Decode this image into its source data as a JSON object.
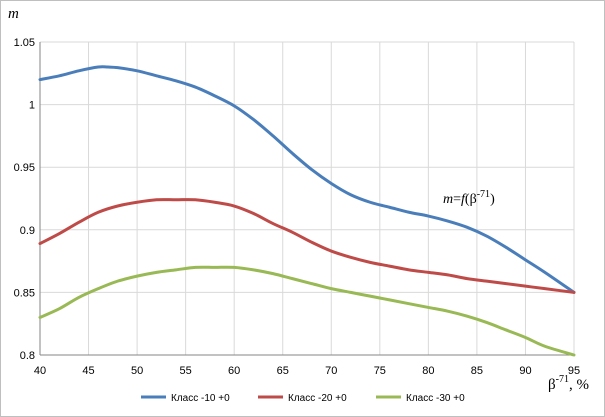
{
  "chart_data": {
    "type": "line",
    "ylabel": "m",
    "xlabel_main": "β",
    "xlabel_sup": "-71",
    "xlabel_unit": ", %",
    "annotation": {
      "prefix": "m",
      "eq": "=",
      "func": "f",
      "arg_open": "(β",
      "arg_sup": "-71",
      "arg_close": ")"
    },
    "xlim": [
      40,
      95
    ],
    "ylim": [
      0.8,
      1.05
    ],
    "x_ticks": [
      40,
      45,
      50,
      55,
      60,
      65,
      70,
      75,
      80,
      85,
      90,
      95
    ],
    "y_ticks": [
      "0.8",
      "0.85",
      "0.9",
      "0.95",
      "1",
      "1.05"
    ],
    "grid": true,
    "legend_position": "bottom",
    "series": [
      {
        "name": "Класс -10 +0",
        "color": "#4a7ebb",
        "x": [
          40,
          42,
          44,
          46,
          47,
          48,
          50,
          52,
          54,
          56,
          58,
          60,
          62,
          64,
          66,
          68,
          70,
          72,
          74,
          76,
          78,
          80,
          82,
          84,
          86,
          88,
          90,
          92,
          95
        ],
        "y": [
          1.02,
          1.023,
          1.027,
          1.03,
          1.03,
          1.0295,
          1.027,
          1.023,
          1.019,
          1.014,
          1.007,
          0.999,
          0.988,
          0.975,
          0.961,
          0.948,
          0.937,
          0.928,
          0.922,
          0.918,
          0.914,
          0.911,
          0.907,
          0.902,
          0.895,
          0.886,
          0.876,
          0.866,
          0.85
        ]
      },
      {
        "name": "Класс -20 +0",
        "color": "#be4b48",
        "x": [
          40,
          42,
          44,
          46,
          48,
          50,
          52,
          54,
          56,
          58,
          60,
          62,
          64,
          66,
          68,
          70,
          72,
          74,
          76,
          78,
          80,
          82,
          84,
          86,
          88,
          90,
          92,
          95
        ],
        "y": [
          0.889,
          0.897,
          0.906,
          0.914,
          0.919,
          0.922,
          0.924,
          0.924,
          0.924,
          0.922,
          0.919,
          0.913,
          0.905,
          0.898,
          0.89,
          0.883,
          0.878,
          0.874,
          0.871,
          0.868,
          0.866,
          0.864,
          0.861,
          0.859,
          0.857,
          0.855,
          0.853,
          0.85
        ]
      },
      {
        "name": "Класс -30 +0",
        "color": "#98b954",
        "x": [
          40,
          42,
          44,
          46,
          48,
          50,
          52,
          54,
          56,
          58,
          60,
          62,
          64,
          66,
          68,
          70,
          72,
          74,
          76,
          78,
          80,
          82,
          84,
          86,
          88,
          90,
          92,
          95
        ],
        "y": [
          0.83,
          0.837,
          0.846,
          0.853,
          0.859,
          0.863,
          0.866,
          0.868,
          0.87,
          0.87,
          0.87,
          0.868,
          0.865,
          0.861,
          0.857,
          0.853,
          0.85,
          0.847,
          0.844,
          0.841,
          0.838,
          0.835,
          0.831,
          0.826,
          0.82,
          0.814,
          0.807,
          0.8
        ]
      }
    ]
  }
}
